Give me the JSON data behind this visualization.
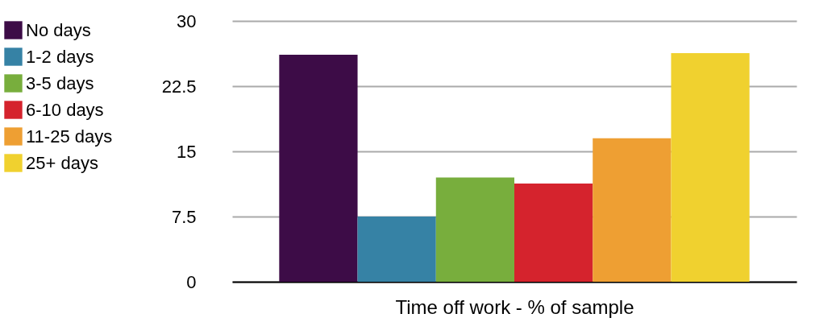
{
  "chart_data": {
    "type": "bar",
    "xlabel": "Time off work - % of sample",
    "categories": [
      null
    ],
    "series": [
      {
        "name": "No days",
        "color": "#3d0c47",
        "values": [
          26.1
        ]
      },
      {
        "name": "1-2 days",
        "color": "#3682a5",
        "values": [
          7.5
        ]
      },
      {
        "name": "3-5 days",
        "color": "#78ae3d",
        "values": [
          12.0
        ]
      },
      {
        "name": "6-10 days",
        "color": "#d5232d",
        "values": [
          11.3
        ]
      },
      {
        "name": "11-25 days",
        "color": "#ee9f33",
        "values": [
          16.5
        ]
      },
      {
        "name": "25+ days",
        "color": "#f0d12f",
        "values": [
          26.3
        ]
      }
    ],
    "ylim": [
      0,
      30
    ],
    "yticks": [
      0,
      7.5,
      15,
      22.5,
      30
    ],
    "grid": "y",
    "legend": "left",
    "tick_labels": "y"
  }
}
